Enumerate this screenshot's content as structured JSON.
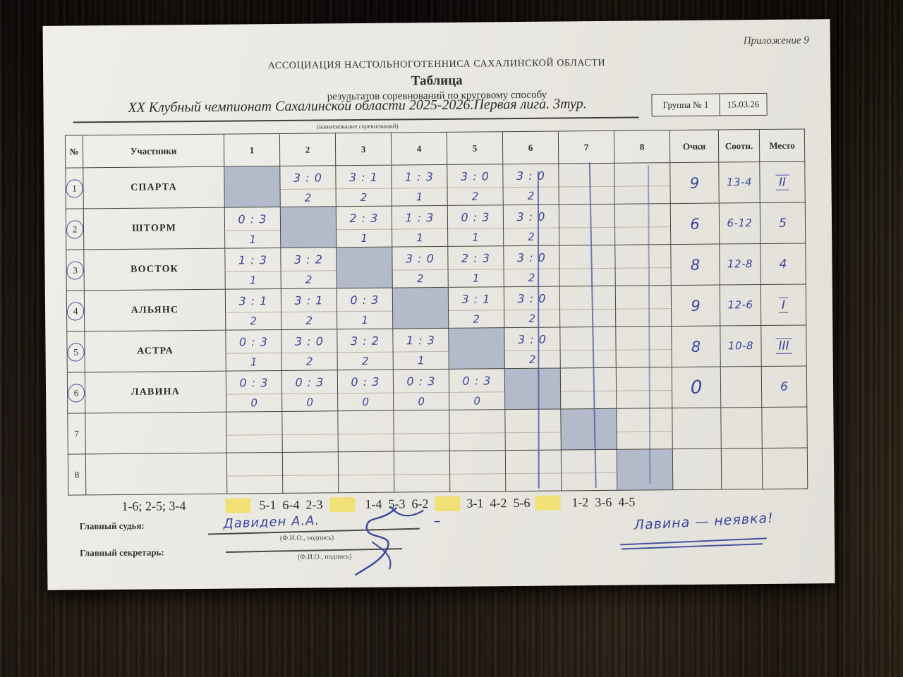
{
  "page": {
    "appendix": "Приложение 9",
    "org": "АССОЦИАЦИЯ НАСТОЛЬНОГОТЕННИСА САХАЛИНСКОЙ ОБЛАСТИ",
    "title": "Таблица",
    "subtitle": "результатов соревнований по круговому способу",
    "event": "XX Клубный чемпионат Сахалинской области 2025-2026.Первая лига. 3тур.",
    "event_caption": "(наименование соревнований)",
    "group_label": "Группа № 1",
    "date": "15.03.26"
  },
  "table": {
    "col_headers": {
      "num": "№",
      "participants": "Участники",
      "games": [
        "1",
        "2",
        "3",
        "4",
        "5",
        "6",
        "7",
        "8"
      ],
      "points": "Очки",
      "ratio": "Соотн.",
      "place": "Место"
    },
    "rows": [
      {
        "num": "1",
        "circled": true,
        "team": "СПАРТА",
        "games": [
          null,
          {
            "score": "3 : 0",
            "pts": "2"
          },
          {
            "score": "3 : 1",
            "pts": "2"
          },
          {
            "score": "1 : 3",
            "pts": "1"
          },
          {
            "score": "3 : 0",
            "pts": "2"
          },
          {
            "score": "3 : 0",
            "pts": "2"
          },
          null,
          null
        ],
        "points": "9",
        "ratio": "13-4",
        "place": "II",
        "place_roman": true
      },
      {
        "num": "2",
        "circled": true,
        "team": "ШТОРМ",
        "games": [
          {
            "score": "0 : 3",
            "pts": "1"
          },
          null,
          {
            "score": "2 : 3",
            "pts": "1"
          },
          {
            "score": "1 : 3",
            "pts": "1"
          },
          {
            "score": "0 : 3",
            "pts": "1"
          },
          {
            "score": "3 : 0",
            "pts": "2"
          },
          null,
          null
        ],
        "points": "6",
        "ratio": "6-12",
        "place": "5",
        "place_roman": false
      },
      {
        "num": "3",
        "circled": true,
        "team": "ВОСТОК",
        "games": [
          {
            "score": "1 : 3",
            "pts": "1"
          },
          {
            "score": "3 : 2",
            "pts": "2"
          },
          null,
          {
            "score": "3 : 0",
            "pts": "2"
          },
          {
            "score": "2 : 3",
            "pts": "1"
          },
          {
            "score": "3 : 0",
            "pts": "2"
          },
          null,
          null
        ],
        "points": "8",
        "ratio": "12-8",
        "place": "4",
        "place_roman": false
      },
      {
        "num": "4",
        "circled": true,
        "team": "АЛЬЯНС",
        "games": [
          {
            "score": "3 : 1",
            "pts": "2"
          },
          {
            "score": "3 : 1",
            "pts": "2"
          },
          {
            "score": "0 : 3",
            "pts": "1"
          },
          null,
          {
            "score": "3 : 1",
            "pts": "2"
          },
          {
            "score": "3 : 0",
            "pts": "2"
          },
          null,
          null
        ],
        "points": "9",
        "ratio": "12-6",
        "place": "I",
        "place_roman": true
      },
      {
        "num": "5",
        "circled": true,
        "team": "АСТРА",
        "games": [
          {
            "score": "0 : 3",
            "pts": "1"
          },
          {
            "score": "3 : 0",
            "pts": "2"
          },
          {
            "score": "3 : 2",
            "pts": "2"
          },
          {
            "score": "1 : 3",
            "pts": "1"
          },
          null,
          {
            "score": "3 : 0",
            "pts": "2"
          },
          null,
          null
        ],
        "points": "8",
        "ratio": "10-8",
        "place": "III",
        "place_roman": true
      },
      {
        "num": "6",
        "circled": true,
        "team": "ЛАВИНА",
        "games": [
          {
            "score": "0 : 3",
            "pts": "0"
          },
          {
            "score": "0 : 3",
            "pts": "0"
          },
          {
            "score": "0 : 3",
            "pts": "0"
          },
          {
            "score": "0 : 3",
            "pts": "0"
          },
          {
            "score": "0 : 3",
            "pts": "0"
          },
          null,
          null,
          null
        ],
        "points": "0",
        "ratio": "",
        "place": "6",
        "place_roman": false
      },
      {
        "num": "7",
        "circled": false,
        "team": "",
        "games": [
          null,
          null,
          null,
          null,
          null,
          null,
          null,
          null
        ],
        "points": "",
        "ratio": "",
        "place": "",
        "place_roman": false
      },
      {
        "num": "8",
        "circled": false,
        "team": "",
        "games": [
          null,
          null,
          null,
          null,
          null,
          null,
          null,
          null
        ],
        "points": "",
        "ratio": "",
        "place": "",
        "place_roman": false
      }
    ],
    "column_strikes": [
      "6",
      "7",
      "8"
    ]
  },
  "schedule": {
    "rounds": [
      "1-6; 2-5; 3-4",
      "5-1  6-4  2-3",
      "1-4  5-3  6-2",
      "3-1  4-2  5-6",
      "1-2  3-6  4-5"
    ]
  },
  "signatures": {
    "judge_label": "Главный судья:",
    "secretary_label": "Главный секретарь:",
    "caption": "(Ф.И.О., подпись)",
    "judge_name": "Давиден А.А.",
    "dash": "–"
  },
  "note": "Лавина — неявка!",
  "colors": {
    "ink": "#3a479c",
    "highlight": "#f1e06b",
    "diagonal_cell": "#b3bac9",
    "paper": "#e9e7e1"
  }
}
